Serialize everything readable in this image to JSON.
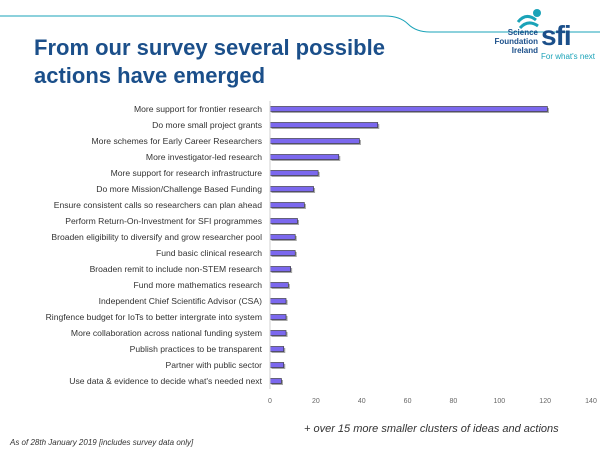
{
  "title": "From our survey several possible actions have emerged",
  "logo": {
    "org_line1": "Science",
    "org_line2": "Foundation",
    "org_line3": "Ireland",
    "wordmark": "sfi",
    "tagline": "For what's next"
  },
  "footnote": "+ over 15 more smaller clusters of ideas and actions",
  "as_of": "As of 28th January 2019 [includes survey data only]",
  "colors": {
    "bar": "#7b68ee",
    "bar_shadow": "#a6a6a6",
    "title": "#1b4f8a",
    "accent": "#1aa3b8"
  },
  "chart_data": {
    "type": "bar",
    "orientation": "horizontal",
    "title": "",
    "xlabel": "",
    "ylabel": "",
    "xlim": [
      0,
      140
    ],
    "ticks": [
      0,
      20,
      40,
      60,
      80,
      100,
      120,
      140
    ],
    "grid": false,
    "categories": [
      "More support for frontier research",
      "Do more small project grants",
      "More schemes for Early Career Researchers",
      "More investigator-led research",
      "More support for research infrastructure",
      "Do more Mission/Challenge Based Funding",
      "Ensure consistent calls so researchers can plan ahead",
      "Perform Return-On-Investment for SFI programmes",
      "Broaden eligibility to diversify and grow researcher pool",
      "Fund basic clinical research",
      "Broaden remit to include non-STEM research",
      "Fund more mathematics research",
      "Independent Chief Scientific Advisor (CSA)",
      "Ringfence budget for IoTs to better intergrate into system",
      "More collaboration across national funding system",
      "Publish practices to be transparent",
      "Partner with public sector",
      "Use data & evidence to decide what's needed next"
    ],
    "values": [
      121,
      47,
      39,
      30,
      21,
      19,
      15,
      12,
      11,
      11,
      9,
      8,
      7,
      7,
      7,
      6,
      6,
      5
    ]
  }
}
